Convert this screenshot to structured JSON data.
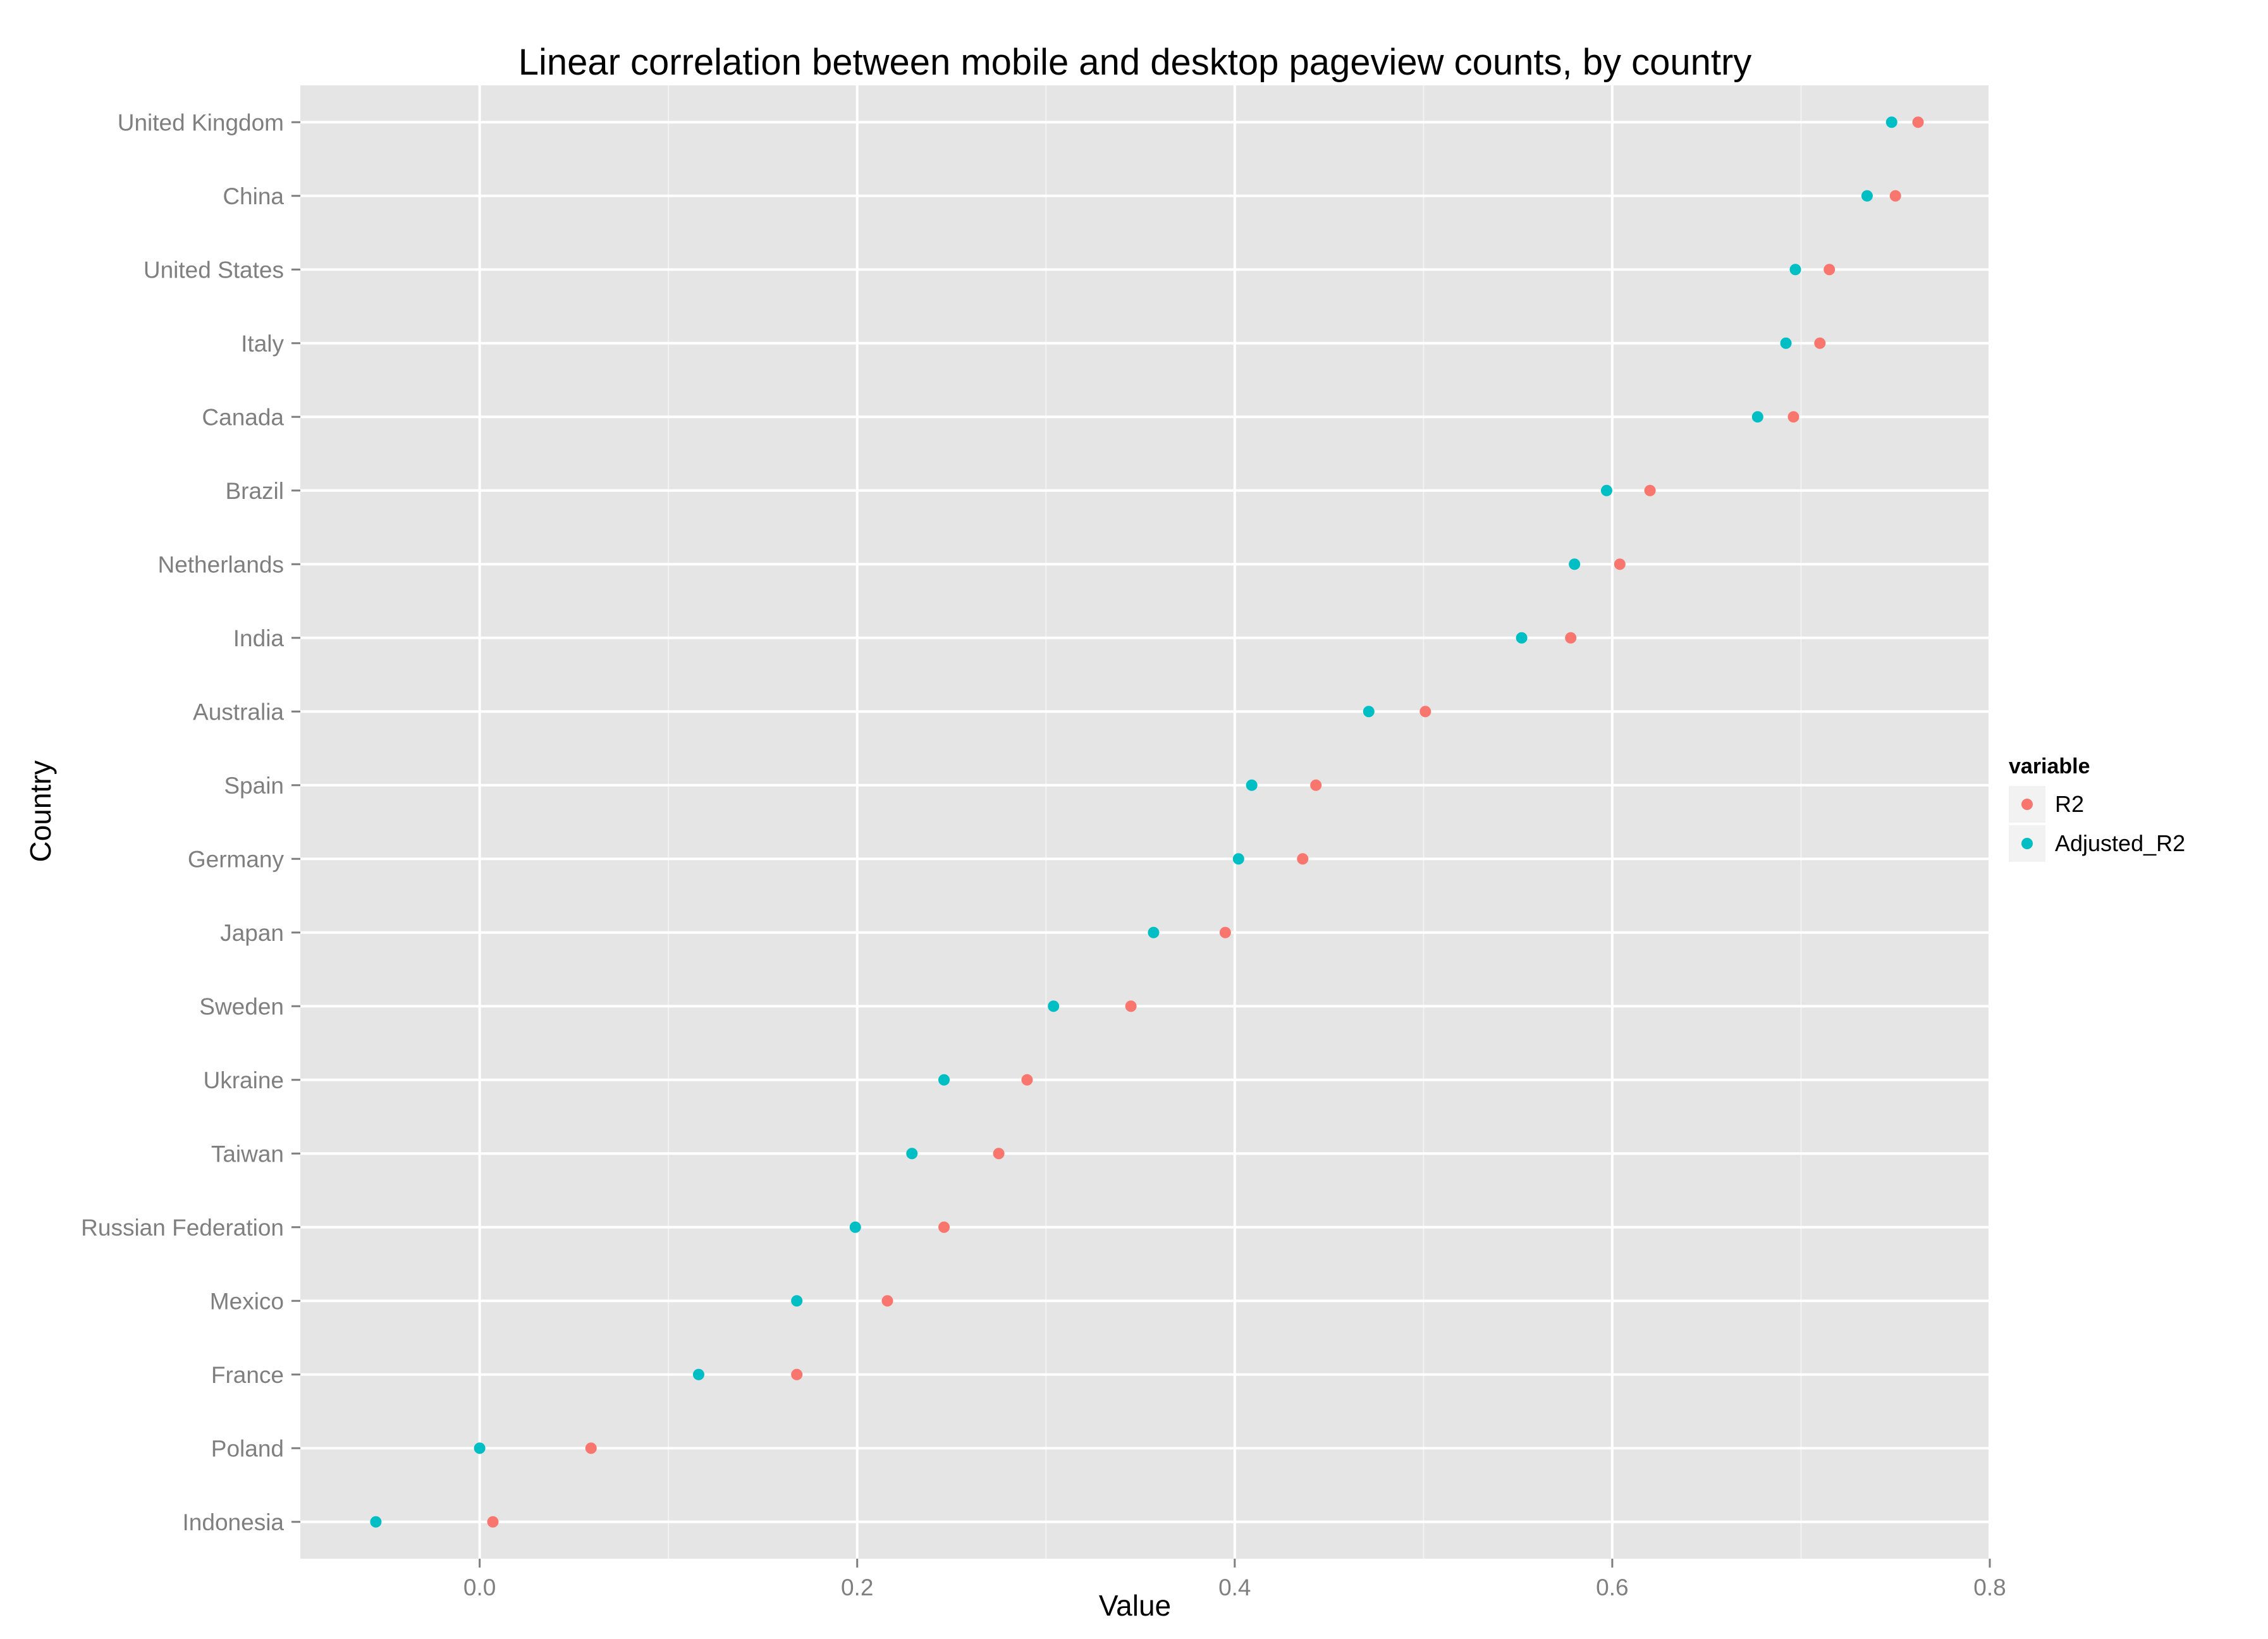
{
  "chart_data": {
    "type": "scatter",
    "title": "Linear correlation between mobile and desktop pageview counts, by country",
    "xlabel": "Value",
    "ylabel": "Country",
    "xlim": [
      -0.095,
      0.8
    ],
    "x_ticks": [
      0.0,
      0.2,
      0.4,
      0.6,
      0.8
    ],
    "x_tick_labels": [
      "0.0",
      "0.2",
      "0.4",
      "0.6",
      "0.8"
    ],
    "categories": [
      "United Kingdom",
      "China",
      "United States",
      "Italy",
      "Canada",
      "Brazil",
      "Netherlands",
      "India",
      "Australia",
      "Spain",
      "Germany",
      "Japan",
      "Sweden",
      "Ukraine",
      "Taiwan",
      "Russian Federation",
      "Mexico",
      "France",
      "Poland",
      "Indonesia"
    ],
    "series": [
      {
        "name": "R2",
        "color": "#F8766D",
        "values": [
          0.762,
          0.75,
          0.715,
          0.71,
          0.696,
          0.62,
          0.604,
          0.578,
          0.501,
          0.443,
          0.436,
          0.395,
          0.345,
          0.29,
          0.275,
          0.246,
          0.216,
          0.168,
          0.059,
          0.007
        ]
      },
      {
        "name": "Adjusted_R2",
        "color": "#00BFC4",
        "values": [
          0.748,
          0.735,
          0.697,
          0.692,
          0.677,
          0.597,
          0.58,
          0.552,
          0.471,
          0.409,
          0.402,
          0.357,
          0.304,
          0.246,
          0.229,
          0.199,
          0.168,
          0.116,
          0.0,
          -0.055
        ]
      }
    ],
    "legend": {
      "title": "variable",
      "position": "right"
    },
    "grid": true,
    "panel_background": "#E5E5E5"
  }
}
